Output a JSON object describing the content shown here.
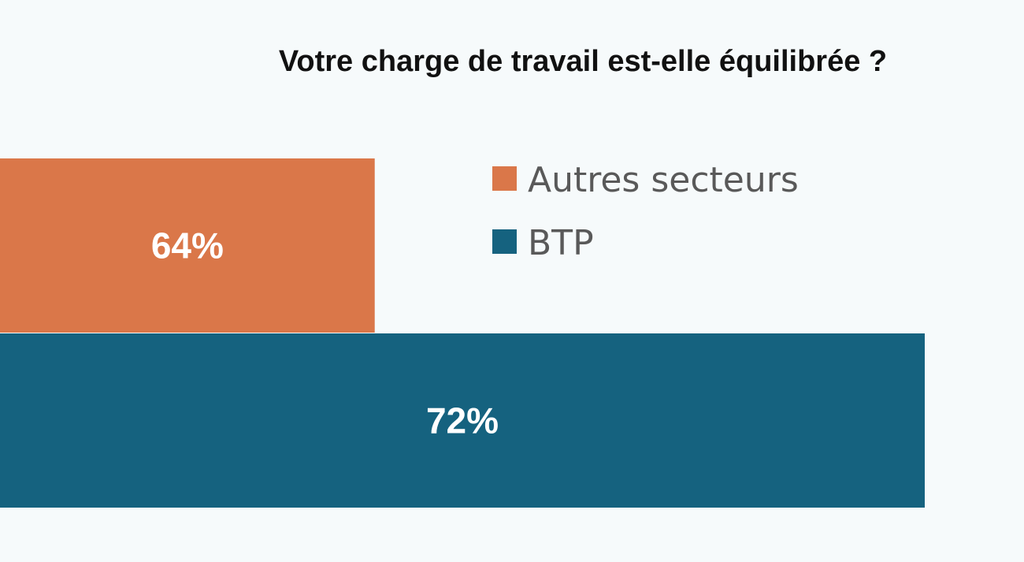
{
  "chart_data": {
    "type": "bar",
    "orientation": "horizontal",
    "title": "Votre charge de travail est-elle équilibrée ?",
    "xlabel": "",
    "ylabel": "",
    "xlim": [
      0,
      80
    ],
    "grid": false,
    "legend_position": "top-right",
    "series": [
      {
        "name": "Autres secteurs",
        "value": 64,
        "label": "64%",
        "color": "#da7749"
      },
      {
        "name": "BTP",
        "value": 72,
        "label": "72%",
        "color": "#15627f"
      }
    ]
  }
}
